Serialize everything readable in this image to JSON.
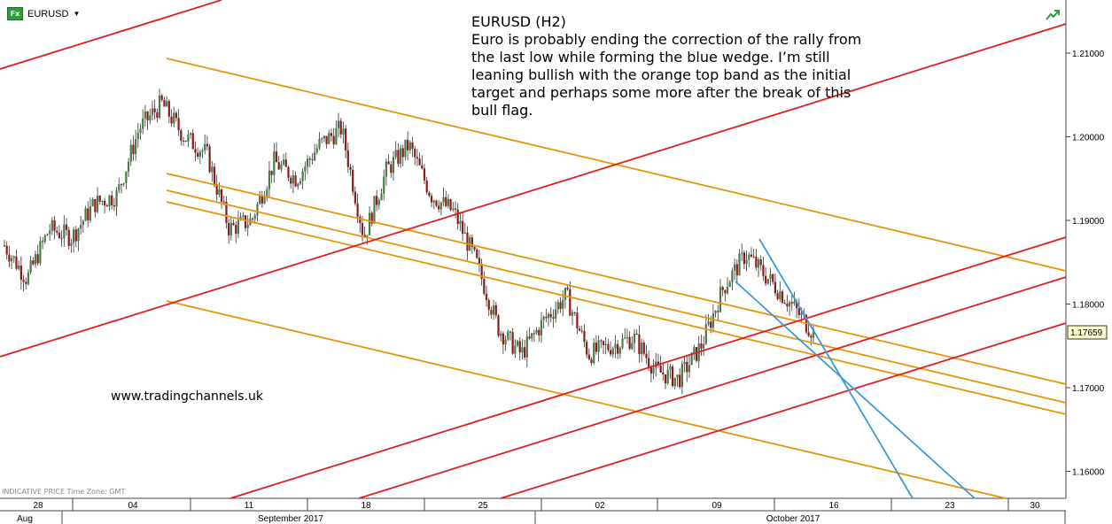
{
  "header": {
    "symbol": "EURUSD",
    "fx_badge": "Fx",
    "icon": "fx-icon"
  },
  "annotation": {
    "title": "EURUSD (H2)",
    "body": "Euro is probably ending the correction of the rally from\nthe last low while forming the blue wedge. I’m still\nleaning bullish with the orange top band as the initial\ntarget and perhaps some more after the break of this\nbull flag."
  },
  "watermark": "www.tradingchannels.uk",
  "footer": {
    "indicative": "INDICATIVE PRICE   Time Zone: GMT"
  },
  "price_label": "1.17659",
  "colors": {
    "up_candle": "#4a7a4a",
    "down_candle": "#8b1a1a",
    "orange": "#e8940c",
    "red": "#e01e1e",
    "blue": "#3a9ad9",
    "price_tag": "#ffffcc"
  },
  "chart_data": {
    "type": "candlestick",
    "symbol": "EURUSD",
    "timeframe": "H2",
    "ylim": [
      1.1555,
      1.2115
    ],
    "yticks": [
      "1.21000",
      "1.20000",
      "1.19000",
      "1.18000",
      "1.17000",
      "1.16000"
    ],
    "x_day_ticks": [
      "28",
      "04",
      "11",
      "18",
      "25",
      "02",
      "09",
      "16",
      "23",
      "30"
    ],
    "x_month_labels": [
      "Aug",
      "September 2017",
      "October 2017"
    ],
    "last_price": 1.17659,
    "close_path": [
      {
        "d": "Aug 28",
        "c": 1.187
      },
      {
        "d": "Aug 29",
        "c": 1.183
      },
      {
        "d": "Aug 30",
        "c": 1.189
      },
      {
        "d": "Aug 31",
        "c": 1.188
      },
      {
        "d": "Sep 01",
        "c": 1.192
      },
      {
        "d": "Sep 04",
        "c": 1.193
      },
      {
        "d": "Sep 05",
        "c": 1.201
      },
      {
        "d": "Sep 06",
        "c": 1.204
      },
      {
        "d": "Sep 07",
        "c": 1.2
      },
      {
        "d": "Sep 08",
        "c": 1.198
      },
      {
        "d": "Sep 11",
        "c": 1.189
      },
      {
        "d": "Sep 12",
        "c": 1.19
      },
      {
        "d": "Sep 13",
        "c": 1.197
      },
      {
        "d": "Sep 14",
        "c": 1.195
      },
      {
        "d": "Sep 15",
        "c": 1.199
      },
      {
        "d": "Sep 17",
        "c": 1.201
      },
      {
        "d": "Sep 18",
        "c": 1.188
      },
      {
        "d": "Sep 19",
        "c": 1.196
      },
      {
        "d": "Sep 20",
        "c": 1.199
      },
      {
        "d": "Sep 21",
        "c": 1.193
      },
      {
        "d": "Sep 22",
        "c": 1.191
      },
      {
        "d": "Sep 25",
        "c": 1.185
      },
      {
        "d": "Sep 26",
        "c": 1.177
      },
      {
        "d": "Sep 27",
        "c": 1.174
      },
      {
        "d": "Sep 28",
        "c": 1.178
      },
      {
        "d": "Sep 29",
        "c": 1.181
      },
      {
        "d": "Oct 02",
        "c": 1.174
      },
      {
        "d": "Oct 03",
        "c": 1.175
      },
      {
        "d": "Oct 04",
        "c": 1.176
      },
      {
        "d": "Oct 05",
        "c": 1.172
      },
      {
        "d": "Oct 06",
        "c": 1.171
      },
      {
        "d": "Oct 09",
        "c": 1.175
      },
      {
        "d": "Oct 10",
        "c": 1.182
      },
      {
        "d": "Oct 11",
        "c": 1.186
      },
      {
        "d": "Oct 12",
        "c": 1.183
      },
      {
        "d": "Oct 13",
        "c": 1.18
      },
      {
        "d": "Oct 16",
        "c": 1.1766
      }
    ]
  }
}
